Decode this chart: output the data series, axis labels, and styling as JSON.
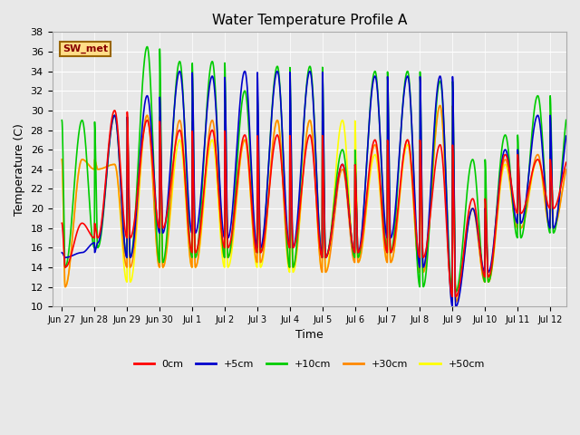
{
  "title": "Water Temperature Profile A",
  "xlabel": "Time",
  "ylabel": "Temperature (C)",
  "ylim": [
    10,
    38
  ],
  "background_color": "#e8e8e8",
  "plot_bg": "#e8e8e8",
  "grid_color": "white",
  "series": {
    "0cm": {
      "color": "#ff0000",
      "lw": 1.2
    },
    "+5cm": {
      "color": "#0000cc",
      "lw": 1.2
    },
    "+10cm": {
      "color": "#00cc00",
      "lw": 1.2
    },
    "+30cm": {
      "color": "#ff8800",
      "lw": 1.2
    },
    "+50cm": {
      "color": "#ffff00",
      "lw": 1.2
    }
  },
  "tick_labels": [
    "Jun 27",
    "Jun 28",
    "Jun 29",
    "Jun 30",
    "Jul 1",
    "Jul 2",
    "Jul 3",
    "Jul 4",
    "Jul 5",
    "Jul 6",
    "Jul 7",
    "Jul 8",
    "Jul 9",
    "Jul 10",
    "Jul 11",
    "Jul 12"
  ],
  "label_box": {
    "text": "SW_met",
    "facecolor": "#ffdd88",
    "edgecolor": "#996600",
    "textcolor": "#880000"
  },
  "peaks_0cm": [
    18.5,
    30.0,
    29.0,
    28.0,
    28.0,
    27.5,
    27.5,
    27.5,
    24.5,
    27.0,
    27.0,
    26.5,
    21.0,
    25.5,
    25.0,
    25.5
  ],
  "troughs_0cm": [
    14.0,
    17.0,
    17.0,
    18.0,
    15.5,
    16.0,
    15.5,
    16.0,
    15.0,
    15.5,
    15.5,
    15.0,
    11.0,
    13.0,
    19.5,
    20.0
  ],
  "peaks_5cm": [
    15.5,
    29.5,
    31.5,
    34.0,
    33.5,
    34.0,
    34.0,
    34.0,
    24.5,
    33.5,
    33.5,
    33.5,
    20.0,
    26.0,
    29.5,
    29.0
  ],
  "troughs_5cm": [
    15.0,
    16.5,
    15.0,
    17.5,
    17.5,
    17.0,
    16.0,
    16.0,
    15.0,
    15.5,
    17.0,
    14.0,
    10.0,
    13.5,
    18.5,
    18.0
  ],
  "peaks_10cm": [
    29.0,
    29.5,
    36.5,
    35.0,
    35.0,
    32.0,
    34.5,
    34.5,
    26.0,
    34.0,
    34.0,
    33.0,
    25.0,
    27.5,
    31.5,
    31.0
  ],
  "troughs_10cm": [
    14.0,
    16.0,
    15.0,
    14.5,
    15.0,
    15.0,
    15.5,
    14.0,
    15.0,
    15.0,
    15.5,
    12.0,
    11.5,
    12.5,
    17.0,
    17.5
  ],
  "peaks_30cm": [
    25.0,
    24.5,
    29.5,
    29.0,
    29.0,
    27.0,
    29.0,
    29.0,
    24.0,
    26.5,
    27.0,
    30.5,
    20.0,
    25.0,
    25.5,
    25.0
  ],
  "troughs_30cm": [
    12.0,
    24.0,
    14.0,
    14.0,
    14.0,
    15.0,
    14.5,
    14.0,
    13.5,
    14.5,
    14.5,
    13.5,
    10.5,
    12.5,
    18.0,
    18.0
  ],
  "peaks_50cm": [
    25.0,
    24.5,
    29.5,
    27.0,
    27.0,
    27.0,
    29.0,
    29.0,
    29.0,
    25.5,
    26.5,
    30.5,
    20.0,
    24.5,
    25.0,
    25.0
  ],
  "troughs_50cm": [
    12.0,
    24.0,
    12.5,
    14.0,
    14.0,
    14.0,
    14.0,
    13.5,
    13.5,
    14.5,
    14.5,
    13.5,
    10.5,
    12.5,
    18.0,
    18.0
  ]
}
